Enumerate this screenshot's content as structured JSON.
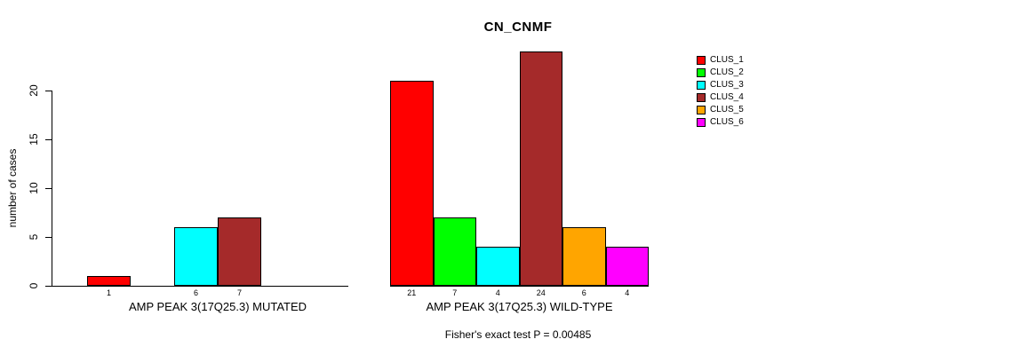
{
  "figure": {
    "background": "#FFFFFF",
    "text_color": "#000000"
  },
  "chart_data": {
    "type": "bar",
    "title": "CN_CNMF",
    "ylabel": "number of cases",
    "xlabel": "",
    "group_labels": [
      "AMP PEAK 3(17Q25.3) MUTATED",
      "AMP PEAK 3(17Q25.3) WILD-TYPE"
    ],
    "yticks": [
      0,
      5,
      10,
      15,
      20
    ],
    "ylim": [
      0,
      24
    ],
    "grid": false,
    "legend_position": "right-outside",
    "bar_value_labels": "shown under each nonzero bar",
    "series": [
      {
        "name": "CLUS_1",
        "color": "#FF0000",
        "values": [
          1,
          21
        ]
      },
      {
        "name": "CLUS_2",
        "color": "#00FF00",
        "values": [
          0,
          7
        ]
      },
      {
        "name": "CLUS_3",
        "color": "#00FFFF",
        "values": [
          6,
          4
        ]
      },
      {
        "name": "CLUS_4",
        "color": "#A52A2A",
        "values": [
          7,
          24
        ]
      },
      {
        "name": "CLUS_5",
        "color": "#FFA500",
        "values": [
          0,
          6
        ]
      },
      {
        "name": "CLUS_6",
        "color": "#FF00FF",
        "values": [
          0,
          4
        ]
      }
    ],
    "annotation": "Fisher's exact test P = 0.00485"
  }
}
